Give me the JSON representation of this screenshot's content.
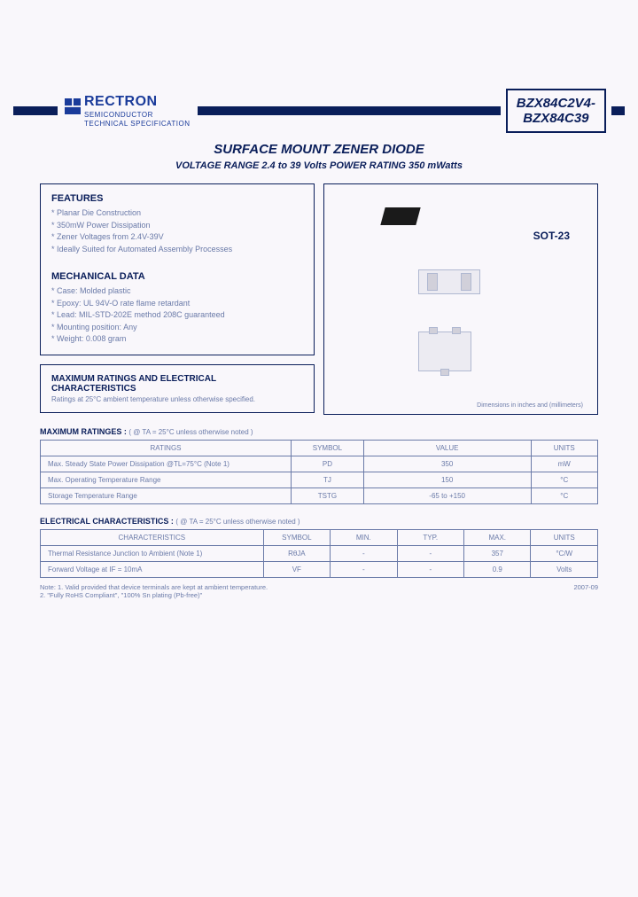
{
  "logo": {
    "name": "RECTRON",
    "sub1": "SEMICONDUCTOR",
    "sub2": "TECHNICAL SPECIFICATION",
    "color": "#1a3b9a"
  },
  "part": {
    "line1": "BZX84C2V4-",
    "line2": "BZX84C39"
  },
  "title": "SURFACE MOUNT ZENER DIODE",
  "subtitle": "VOLTAGE RANGE  2.4 to 39 Volts  POWER RATING 350  mWatts",
  "features": {
    "heading": "FEATURES",
    "items": [
      "Planar Die Construction",
      "350mW Power Dissipation",
      "Zener Voltages from 2.4V-39V",
      "Ideally Suited for Automated Assembly Processes"
    ]
  },
  "mechanical": {
    "heading": "MECHANICAL DATA",
    "items": [
      "Case: Molded plastic",
      "Epoxy: UL 94V-O rate flame retardant",
      "Lead: MIL-STD-202E method 208C guaranteed",
      "Mounting position: Any",
      "Weight: 0.008 gram"
    ]
  },
  "maxbox": {
    "heading": "MAXIMUM RATINGS AND ELECTRICAL CHARACTERISTICS",
    "sub": "Ratings at 25°C ambient temperature unless otherwise specified."
  },
  "package": {
    "label": "SOT-23",
    "caption": "Dimensions in inches and (millimeters)"
  },
  "table1": {
    "caption": "MAXIMUM RATINGES :",
    "note": "( @ TA = 25°C unless otherwise noted )",
    "headers": [
      "RATINGS",
      "SYMBOL",
      "VALUE",
      "UNITS"
    ],
    "col_widths": [
      "45%",
      "13%",
      "30%",
      "12%"
    ],
    "rows": [
      [
        "Max. Steady State Power Dissipation @TL=75°C (Note 1)",
        "PD",
        "350",
        "mW"
      ],
      [
        "Max. Operating Temperature Range",
        "TJ",
        "150",
        "°C"
      ],
      [
        "Storage Temperature Range",
        "TSTG",
        "-65 to +150",
        "°C"
      ]
    ]
  },
  "table2": {
    "caption": "ELECTRICAL CHARACTERISTICS :",
    "note": "( @ TA = 25°C unless otherwise noted )",
    "headers": [
      "CHARACTERISTICS",
      "SYMBOL",
      "MIN.",
      "TYP.",
      "MAX.",
      "UNITS"
    ],
    "col_widths": [
      "40%",
      "12%",
      "12%",
      "12%",
      "12%",
      "12%"
    ],
    "rows": [
      [
        "Thermal Resistance Junction to Ambient (Note 1)",
        "RθJA",
        "-",
        "-",
        "357",
        "°C/W"
      ],
      [
        "Forward Voltage at IF = 10mA",
        "VF",
        "-",
        "-",
        "0.9",
        "Volts"
      ]
    ]
  },
  "notes": {
    "left": "Note: 1. Valid provided that device terminals are kept at ambient temperature.\n          2. \"Fully RoHS Compliant\", \"100% Sn plating (Pb-free)\"",
    "right": "2007-09"
  }
}
